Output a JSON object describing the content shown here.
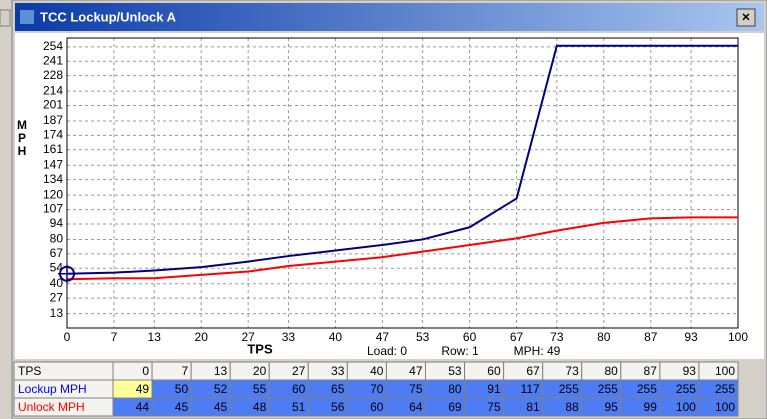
{
  "window": {
    "title": "TCC Lockup/Unlock A",
    "close": "×"
  },
  "status": [
    "Load: 0",
    "Row: 1",
    "MPH: 49"
  ],
  "chart_data": {
    "type": "line",
    "xlabel": "TPS",
    "ylabel": "MPH",
    "x": [
      0,
      7,
      13,
      20,
      27,
      33,
      40,
      47,
      53,
      60,
      67,
      73,
      80,
      87,
      93,
      100
    ],
    "series": [
      {
        "name": "Lockup MPH",
        "color": "#000080",
        "values": [
          49,
          50,
          52,
          55,
          60,
          65,
          70,
          75,
          80,
          91,
          117,
          255,
          255,
          255,
          255,
          255
        ]
      },
      {
        "name": "Unlock MPH",
        "color": "#ff0000",
        "values": [
          44,
          45,
          45,
          48,
          51,
          56,
          60,
          64,
          69,
          75,
          81,
          88,
          95,
          99,
          100,
          100
        ]
      }
    ],
    "xlim": [
      0,
      100
    ],
    "xticks": [
      0,
      7,
      13,
      20,
      27,
      33,
      40,
      47,
      53,
      60,
      67,
      73,
      80,
      87,
      93,
      100
    ],
    "ylim": [
      0,
      262
    ],
    "yticks": [
      13,
      27,
      40,
      54,
      67,
      80,
      94,
      107,
      120,
      134,
      147,
      161,
      174,
      187,
      201,
      214,
      228,
      241,
      254
    ],
    "grid": true
  }
}
